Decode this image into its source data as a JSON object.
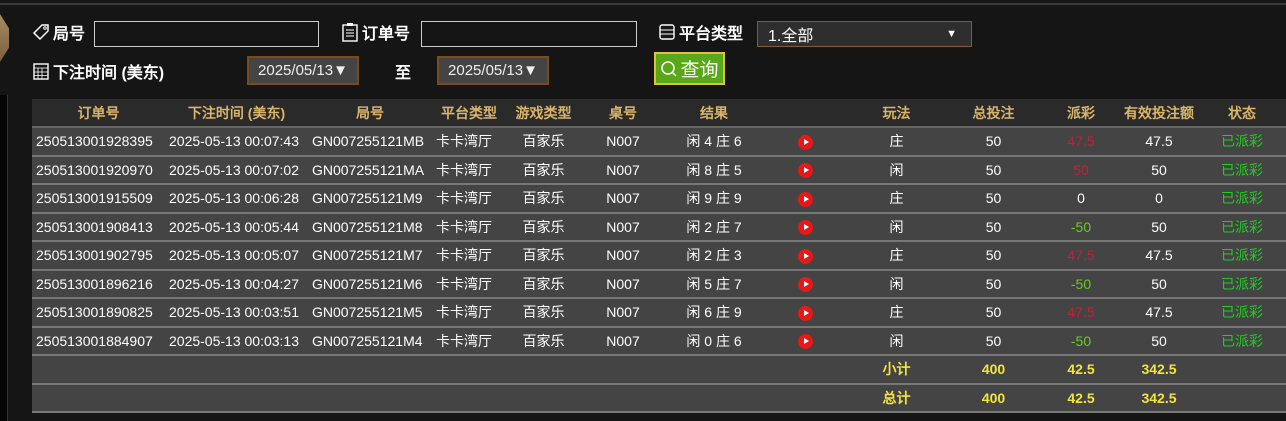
{
  "filters": {
    "round_label": "局号",
    "round_value": "",
    "order_label": "订单号",
    "order_value": "",
    "platform_label": "平台类型",
    "platform_value": "1.全部",
    "time_label": "下注时间 (美东)",
    "date_from": "2025/05/13▼",
    "to_label": "至",
    "date_to": "2025/05/13▼",
    "query_label": "查询"
  },
  "colors": {
    "header_text": "#d9b46a",
    "payout_negative": "#c0203a",
    "payout_positive": "#66cc22",
    "status": "#22cc22",
    "totals": "#f2e43c",
    "query_button": "#58a81a"
  },
  "table": {
    "headers": [
      "订单号",
      "下注时间 (美东)",
      "局号",
      "平台类型",
      "游戏类型",
      "桌号",
      "结果",
      "",
      "玩法",
      "总投注",
      "派彩",
      "有效投注额",
      "状态"
    ],
    "rows": [
      {
        "order": "250513001928395",
        "time": "2025-05-13 00:07:43",
        "round": "GN007255121MB",
        "platform": "卡卡湾厅",
        "game": "百家乐",
        "table": "N007",
        "result": "闲 4 庄 6",
        "bet": "庄",
        "total": "50",
        "payout": "47.5",
        "payout_color": "red",
        "valid": "47.5",
        "status": "已派彩"
      },
      {
        "order": "250513001920970",
        "time": "2025-05-13 00:07:02",
        "round": "GN007255121MA",
        "platform": "卡卡湾厅",
        "game": "百家乐",
        "table": "N007",
        "result": "闲 8 庄 5",
        "bet": "闲",
        "total": "50",
        "payout": "50",
        "payout_color": "red",
        "valid": "50",
        "status": "已派彩"
      },
      {
        "order": "250513001915509",
        "time": "2025-05-13 00:06:28",
        "round": "GN007255121M9",
        "platform": "卡卡湾厅",
        "game": "百家乐",
        "table": "N007",
        "result": "闲 9 庄 9",
        "bet": "庄",
        "total": "50",
        "payout": "0",
        "payout_color": "white",
        "valid": "0",
        "status": "已派彩"
      },
      {
        "order": "250513001908413",
        "time": "2025-05-13 00:05:44",
        "round": "GN007255121M8",
        "platform": "卡卡湾厅",
        "game": "百家乐",
        "table": "N007",
        "result": "闲 2 庄 7",
        "bet": "闲",
        "total": "50",
        "payout": "-50",
        "payout_color": "green",
        "valid": "50",
        "status": "已派彩"
      },
      {
        "order": "250513001902795",
        "time": "2025-05-13 00:05:07",
        "round": "GN007255121M7",
        "platform": "卡卡湾厅",
        "game": "百家乐",
        "table": "N007",
        "result": "闲 2 庄 3",
        "bet": "庄",
        "total": "50",
        "payout": "47.5",
        "payout_color": "red",
        "valid": "47.5",
        "status": "已派彩"
      },
      {
        "order": "250513001896216",
        "time": "2025-05-13 00:04:27",
        "round": "GN007255121M6",
        "platform": "卡卡湾厅",
        "game": "百家乐",
        "table": "N007",
        "result": "闲 5 庄 7",
        "bet": "闲",
        "total": "50",
        "payout": "-50",
        "payout_color": "green",
        "valid": "50",
        "status": "已派彩"
      },
      {
        "order": "250513001890825",
        "time": "2025-05-13 00:03:51",
        "round": "GN007255121M5",
        "platform": "卡卡湾厅",
        "game": "百家乐",
        "table": "N007",
        "result": "闲 6 庄 9",
        "bet": "庄",
        "total": "50",
        "payout": "47.5",
        "payout_color": "red",
        "valid": "47.5",
        "status": "已派彩"
      },
      {
        "order": "250513001884907",
        "time": "2025-05-13 00:03:13",
        "round": "GN007255121M4",
        "platform": "卡卡湾厅",
        "game": "百家乐",
        "table": "N007",
        "result": "闲 0 庄 6",
        "bet": "闲",
        "total": "50",
        "payout": "-50",
        "payout_color": "green",
        "valid": "50",
        "status": "已派彩"
      }
    ],
    "subtotal": {
      "label": "小计",
      "total": "400",
      "payout": "42.5",
      "valid": "342.5"
    },
    "grandtotal": {
      "label": "总计",
      "total": "400",
      "payout": "42.5",
      "valid": "342.5"
    }
  }
}
